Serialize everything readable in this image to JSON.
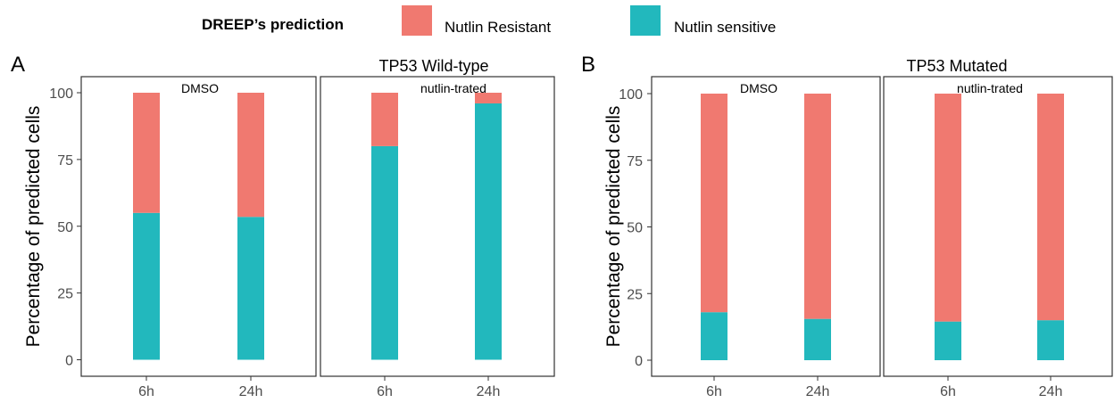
{
  "legend": {
    "title": "DREEP’s prediction",
    "items": [
      {
        "label": "Nutlin Resistant",
        "color": "#F07970"
      },
      {
        "label": "Nutlin sensitive",
        "color": "#22B8BD"
      }
    ]
  },
  "chart_data": [
    {
      "type": "bar",
      "stacked": true,
      "panel_label": "A",
      "title": "TP53 Wild-type",
      "ylabel": "Percentage of predicted cells",
      "ylim": [
        0,
        100
      ],
      "yticks": [
        "0",
        "25",
        "50",
        "75",
        "100"
      ],
      "facets": [
        {
          "label": "DMSO",
          "categories": [
            "6h",
            "24h"
          ],
          "series": [
            {
              "name": "Nutlin sensitive",
              "values": [
                55,
                53.5
              ]
            },
            {
              "name": "Nutlin Resistant",
              "values": [
                45,
                46.5
              ]
            }
          ]
        },
        {
          "label": "nutlin-trated",
          "categories": [
            "6h",
            "24h"
          ],
          "series": [
            {
              "name": "Nutlin sensitive",
              "values": [
                80,
                96
              ]
            },
            {
              "name": "Nutlin Resistant",
              "values": [
                20,
                4
              ]
            }
          ]
        }
      ]
    },
    {
      "type": "bar",
      "stacked": true,
      "panel_label": "B",
      "title": "TP53 Mutated",
      "ylabel": "Percentage of predicted cells",
      "ylim": [
        0,
        100
      ],
      "yticks": [
        "0",
        "25",
        "50",
        "75",
        "100"
      ],
      "facets": [
        {
          "label": "DMSO",
          "categories": [
            "6h",
            "24h"
          ],
          "series": [
            {
              "name": "Nutlin sensitive",
              "values": [
                18,
                15.5
              ]
            },
            {
              "name": "Nutlin Resistant",
              "values": [
                82,
                84.5
              ]
            }
          ]
        },
        {
          "label": "nutlin-trated",
          "categories": [
            "6h",
            "24h"
          ],
          "series": [
            {
              "name": "Nutlin sensitive",
              "values": [
                14.5,
                15
              ]
            },
            {
              "name": "Nutlin Resistant",
              "values": [
                85.5,
                85
              ]
            }
          ]
        }
      ]
    }
  ]
}
